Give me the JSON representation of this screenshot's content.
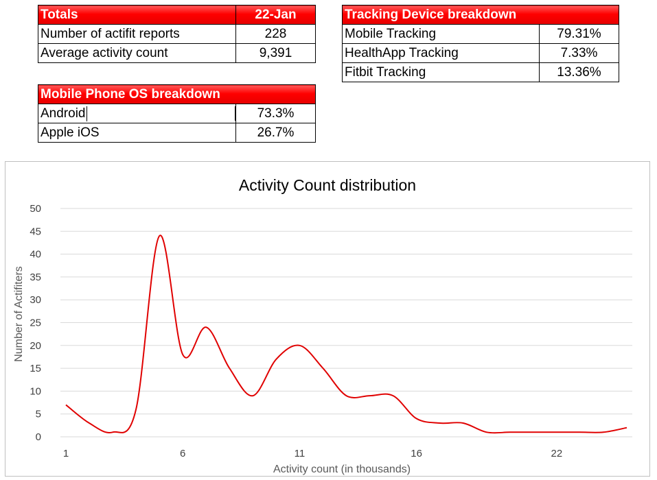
{
  "totals_table": {
    "header": {
      "label": "Totals",
      "value": "22-Jan"
    },
    "rows": [
      {
        "label": "Number of actifit reports",
        "value": "228"
      },
      {
        "label": "Average activity count",
        "value": "9,391"
      }
    ]
  },
  "tracking_table": {
    "header": {
      "label": "Tracking Device breakdown",
      "value": ""
    },
    "rows": [
      {
        "label": "Mobile Tracking",
        "value": "79.31%"
      },
      {
        "label": "HealthApp Tracking",
        "value": "7.33%"
      },
      {
        "label": "Fitbit Tracking",
        "value": "13.36%"
      }
    ]
  },
  "os_table": {
    "header": {
      "label": "Mobile Phone OS breakdown",
      "value": ""
    },
    "rows": [
      {
        "label": "Android",
        "value": "73.3%"
      },
      {
        "label": "Apple iOS",
        "value": "26.7%"
      }
    ]
  },
  "colors": {
    "header_red": "#ff0000",
    "line_red": "#e00000",
    "grid": "#d9d9d9"
  },
  "chart_data": {
    "type": "line",
    "title": "Activity Count distribution",
    "xlabel": "Activity count (in thousands)",
    "ylabel": "Number of Actifiters",
    "x": [
      1,
      2,
      3,
      4,
      5,
      6,
      7,
      8,
      9,
      10,
      11,
      12,
      13,
      14,
      15,
      16,
      17,
      18,
      19,
      20,
      21,
      22,
      23,
      24,
      25
    ],
    "series": [
      {
        "values": [
          7,
          3,
          1,
          6,
          44,
          18,
          24,
          15,
          9,
          17,
          20,
          15,
          9,
          9,
          9,
          4,
          3,
          3,
          1,
          1,
          1,
          1,
          1,
          1,
          2
        ]
      }
    ],
    "xticks": [
      1,
      6,
      11,
      16,
      22
    ],
    "ylim": [
      0,
      50
    ],
    "yticks": [
      0,
      5,
      10,
      15,
      20,
      25,
      30,
      35,
      40,
      45,
      50
    ],
    "grid": true,
    "legend": "none"
  }
}
